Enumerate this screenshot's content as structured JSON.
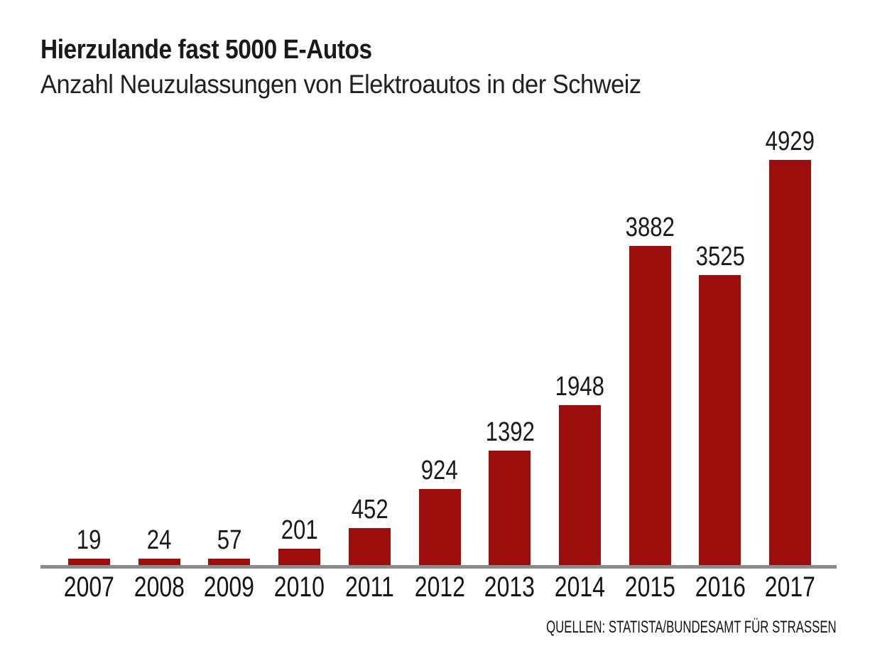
{
  "title": "Hierzulande fast 5000 E-Autos",
  "subtitle": "Anzahl Neuzulassungen von Elektroautos in der Schweiz",
  "source": "QUELLEN: STATISTA/BUNDESAMT FÜR STRASSEN",
  "colors": {
    "bar": "#9B0E0B",
    "axis_line": "#8B8B8B",
    "text": "#1A1A1A",
    "background": "#FFFFFF"
  },
  "chart_data": {
    "type": "bar",
    "categories": [
      "2007",
      "2008",
      "2009",
      "2010",
      "2011",
      "2012",
      "2013",
      "2014",
      "2015",
      "2016",
      "2017"
    ],
    "values": [
      19,
      24,
      57,
      201,
      452,
      924,
      1392,
      1948,
      3882,
      3525,
      4929
    ],
    "title": "Hierzulande fast 5000 E-Autos",
    "subtitle": "Anzahl Neuzulassungen von Elektroautos in der Schweiz",
    "xlabel": "",
    "ylabel": "",
    "ylim": [
      0,
      5000
    ],
    "grid": false,
    "legend": false,
    "data_labels": true,
    "bar_color": "#9B0E0B",
    "source": "QUELLEN: STATISTA/BUNDESAMT FÜR STRASSEN"
  }
}
